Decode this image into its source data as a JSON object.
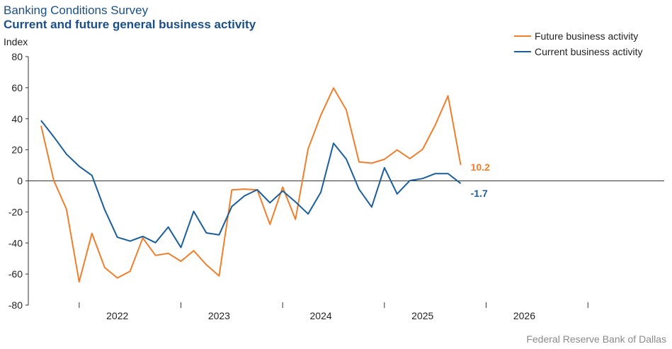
{
  "header": {
    "title": "Banking Conditions Survey",
    "subtitle": "Current and future general business activity"
  },
  "source": "Federal Reserve Bank of Dallas",
  "colors": {
    "future": "#ef7f2d",
    "current": "#1b5e9a",
    "axis": "#333333"
  },
  "chart_data": {
    "type": "line",
    "title": "Current and future general business activity",
    "ylabel": "Index",
    "xlabel": "",
    "ylim": [
      -80,
      80
    ],
    "yticks": [
      80,
      60,
      40,
      20,
      0,
      -20,
      -40,
      -60,
      -80
    ],
    "xlim": [
      0,
      25
    ],
    "x_tick_labels": [
      {
        "label": "2022",
        "pos": 3.5
      },
      {
        "label": "2023",
        "pos": 7.5
      },
      {
        "label": "2024",
        "pos": 11.5
      },
      {
        "label": "2025",
        "pos": 15.5
      },
      {
        "label": "2026",
        "pos": 19.5
      }
    ],
    "year_boundaries": [
      2,
      6,
      10,
      14,
      18,
      22
    ],
    "legend_position": "top-right",
    "series": [
      {
        "name": "Future business activity",
        "color_key": "future",
        "end_label": "10.2",
        "x": [
          0.5,
          1,
          1.5,
          2,
          2.5,
          3,
          3.5,
          4,
          4.5,
          5,
          5.5,
          6,
          6.5,
          7,
          7.5,
          8,
          8.5,
          9,
          9.5,
          10,
          10.5,
          11,
          11.5,
          12,
          12.5,
          13,
          13.5,
          14,
          14.5,
          15,
          15.5,
          16,
          16.5,
          17
        ],
        "values": [
          35.5,
          0.3,
          -18.3,
          -65,
          -33.8,
          -55.8,
          -62.5,
          -58.2,
          -36.8,
          -48,
          -46.7,
          -51.8,
          -45,
          -54,
          -61.2,
          -5.8,
          -5.3,
          -5.8,
          -28,
          -4,
          -24.8,
          20.6,
          42.3,
          59.8,
          45.7,
          12.2,
          11.4,
          13.9,
          19.9,
          14.3,
          20.3,
          36,
          54.8,
          10.2
        ]
      },
      {
        "name": "Current business activity",
        "color_key": "current",
        "end_label": "-1.7",
        "x": [
          0.5,
          1,
          1.5,
          2,
          2.5,
          3,
          3.5,
          4,
          4.5,
          5,
          5.5,
          6,
          6.5,
          7,
          7.5,
          8,
          8.5,
          9,
          9.5,
          10,
          10.5,
          11,
          11.5,
          12,
          12.5,
          13,
          13.5,
          14,
          14.5,
          15,
          15.5,
          16,
          16.5,
          17
        ],
        "values": [
          38.9,
          28.4,
          17.2,
          9.4,
          3.5,
          -18.5,
          -36.3,
          -38.8,
          -35.8,
          -39.8,
          -29.7,
          -42.9,
          -19.6,
          -33.5,
          -34.8,
          -16.5,
          -9.6,
          -5.7,
          -14.1,
          -6.5,
          -13.5,
          -21.3,
          -7.3,
          24.2,
          14.1,
          -5.4,
          -16.8,
          8.5,
          -8.4,
          0.2,
          1.5,
          4.7,
          4.7,
          -1.7
        ]
      }
    ]
  }
}
